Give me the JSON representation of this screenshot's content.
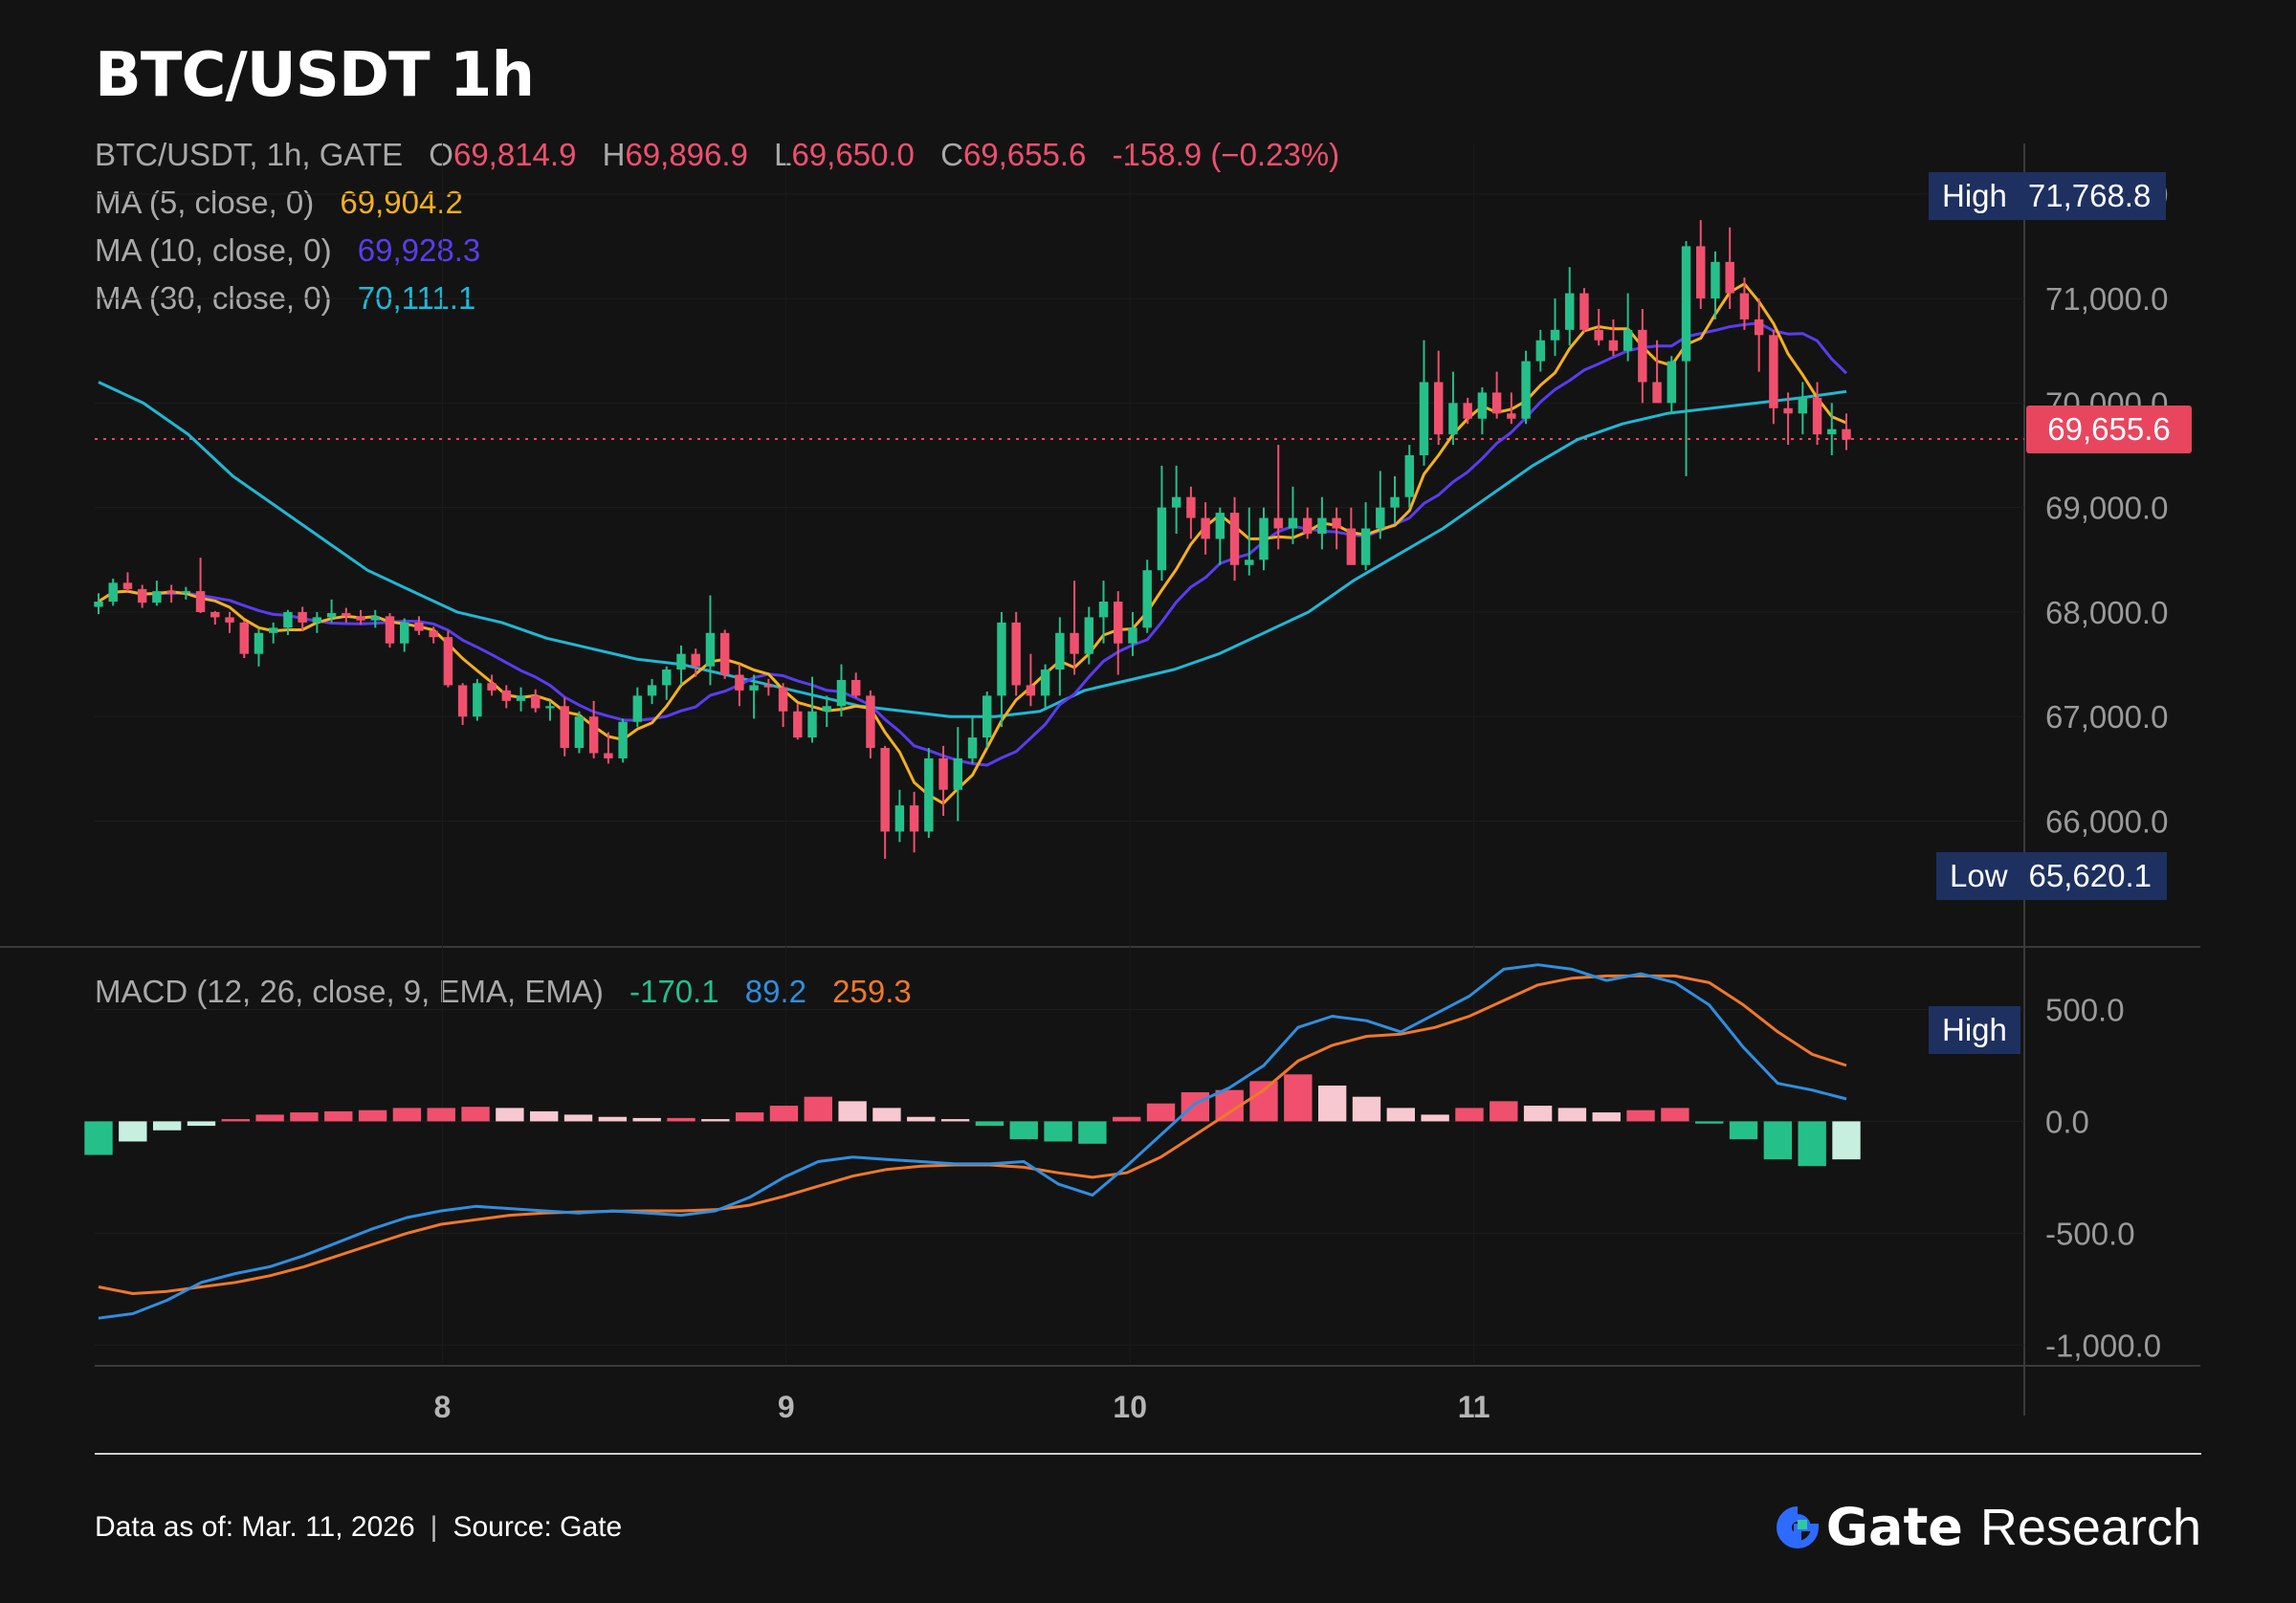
{
  "title": "BTC/USDT 1h",
  "legend": {
    "symbol": "BTC/USDT, 1h, GATE",
    "o_label": "O",
    "o_value": "69,814.9",
    "h_label": "H",
    "h_value": "69,896.9",
    "l_label": "L",
    "l_value": "69,650.0",
    "c_label": "C",
    "c_value": "69,655.6",
    "change": "-158.9 (−0.23%)",
    "ma5_label": "MA (5, close, 0)",
    "ma5_value": "69,904.2",
    "ma10_label": "MA (10, close, 0)",
    "ma10_value": "69,928.3",
    "ma30_label": "MA (30, close, 0)",
    "ma30_value": "70,111.1",
    "macd_label": "MACD (12, 26, close, 9, EMA, EMA)",
    "macd_hist": "-170.1",
    "macd_line": "89.2",
    "macd_signal": "259.3"
  },
  "tags": {
    "high_label": "High",
    "high_value": "71,768.8",
    "low_label": "Low",
    "low_value": "65,620.1",
    "last_price": "69,655.6",
    "macd_high_label": "High"
  },
  "footer": {
    "data_as_of": "Data as of: Mar. 11, 2026",
    "source": "Source:  Gate",
    "brand_name": "Gate",
    "brand_suffix": "Research"
  },
  "colors": {
    "up": "#25c08a",
    "down": "#f0506e",
    "ma5": "#f5b01b",
    "ma10": "#5a3cf0",
    "ma30": "#1fb8d6",
    "macd": "#2f8fe0",
    "signal": "#f0782a",
    "tag_bg": "#1d3060",
    "price_tag": "#e8465e"
  },
  "chart_data": [
    {
      "type": "candlestick",
      "title": "BTC/USDT 1h",
      "price_axis": {
        "ticks": [
          "72,000.0",
          "71,000.0",
          "70,000.0",
          "69,000.0",
          "68,000.0",
          "67,000.0",
          "66,000.0"
        ],
        "tick_values": [
          72000,
          71000,
          70000,
          69000,
          68000,
          67000,
          66000
        ],
        "ylim": [
          65300,
          72300
        ]
      },
      "x_ticks": [
        "8",
        "9",
        "10",
        "11"
      ],
      "x_tick_bars": [
        24,
        48,
        72,
        96
      ],
      "last_price": 69655.6,
      "high": 71768.8,
      "low": 65620.1,
      "candles": [
        [
          68050,
          68180,
          67980,
          68100
        ],
        [
          68100,
          68320,
          68060,
          68280
        ],
        [
          68280,
          68380,
          68200,
          68220
        ],
        [
          68220,
          68260,
          68040,
          68090
        ],
        [
          68090,
          68300,
          68060,
          68200
        ],
        [
          68200,
          68260,
          68090,
          68180
        ],
        [
          68180,
          68240,
          68120,
          68200
        ],
        [
          68200,
          68520,
          67990,
          68000
        ],
        [
          68000,
          68010,
          67880,
          67950
        ],
        [
          67950,
          68000,
          67800,
          67900
        ],
        [
          67900,
          67920,
          67560,
          67600
        ],
        [
          67600,
          67840,
          67480,
          67800
        ],
        [
          67800,
          67900,
          67700,
          67850
        ],
        [
          67850,
          68020,
          67780,
          68000
        ],
        [
          68000,
          68050,
          67820,
          67900
        ],
        [
          67900,
          68000,
          67800,
          67950
        ],
        [
          67950,
          68120,
          67900,
          67990
        ],
        [
          67990,
          68040,
          67900,
          67960
        ],
        [
          67960,
          68020,
          67880,
          67920
        ],
        [
          67920,
          68020,
          67850,
          67960
        ],
        [
          67960,
          67990,
          67660,
          67700
        ],
        [
          67700,
          67940,
          67620,
          67900
        ],
        [
          67900,
          67960,
          67780,
          67820
        ],
        [
          67820,
          67860,
          67700,
          67760
        ],
        [
          67760,
          67820,
          67280,
          67300
        ],
        [
          67300,
          67320,
          66920,
          67000
        ],
        [
          67000,
          67360,
          66960,
          67320
        ],
        [
          67320,
          67400,
          67200,
          67250
        ],
        [
          67250,
          67300,
          67080,
          67150
        ],
        [
          67150,
          67280,
          67050,
          67200
        ],
        [
          67200,
          67260,
          67040,
          67080
        ],
        [
          67080,
          67150,
          66960,
          67100
        ],
        [
          67100,
          67180,
          66620,
          66700
        ],
        [
          66700,
          67050,
          66650,
          67000
        ],
        [
          67000,
          67150,
          66600,
          66650
        ],
        [
          66650,
          66850,
          66550,
          66600
        ],
        [
          66600,
          66980,
          66560,
          66950
        ],
        [
          66950,
          67280,
          66900,
          67200
        ],
        [
          67200,
          67360,
          67120,
          67300
        ],
        [
          67300,
          67480,
          67160,
          67450
        ],
        [
          67450,
          67680,
          67300,
          67600
        ],
        [
          67600,
          67650,
          67380,
          67480
        ],
        [
          67480,
          68160,
          67300,
          67800
        ],
        [
          67800,
          67830,
          67360,
          67400
        ],
        [
          67400,
          67500,
          67100,
          67250
        ],
        [
          67250,
          67400,
          66980,
          67300
        ],
        [
          67300,
          67360,
          67200,
          67280
        ],
        [
          67280,
          67320,
          66900,
          67050
        ],
        [
          67050,
          67120,
          66780,
          66800
        ],
        [
          66800,
          67380,
          66750,
          67050
        ],
        [
          67050,
          67200,
          66900,
          67100
        ],
        [
          67100,
          67500,
          67000,
          67350
        ],
        [
          67350,
          67420,
          67180,
          67200
        ],
        [
          67200,
          67250,
          66600,
          66700
        ],
        [
          66700,
          66720,
          65640,
          65900
        ],
        [
          65900,
          66300,
          65800,
          66150
        ],
        [
          66150,
          66280,
          65700,
          65900
        ],
        [
          65900,
          66700,
          65840,
          66600
        ],
        [
          66600,
          66720,
          66050,
          66300
        ],
        [
          66300,
          66900,
          66000,
          66600
        ],
        [
          66600,
          67000,
          66550,
          66800
        ],
        [
          66800,
          67240,
          66700,
          67200
        ],
        [
          67200,
          68000,
          66900,
          67900
        ],
        [
          67900,
          68000,
          67200,
          67300
        ],
        [
          67300,
          67600,
          67100,
          67200
        ],
        [
          67200,
          67500,
          67080,
          67450
        ],
        [
          67450,
          67950,
          67200,
          67800
        ],
        [
          67800,
          68300,
          67400,
          67600
        ],
        [
          67600,
          68050,
          67500,
          67950
        ],
        [
          67950,
          68300,
          67700,
          68100
        ],
        [
          68100,
          68200,
          67400,
          67700
        ],
        [
          67700,
          68000,
          67580,
          67850
        ],
        [
          67850,
          68500,
          67800,
          68400
        ],
        [
          68400,
          69400,
          68300,
          69000
        ],
        [
          69000,
          69400,
          68750,
          69100
        ],
        [
          69100,
          69200,
          68700,
          68900
        ],
        [
          68900,
          69050,
          68550,
          68700
        ],
        [
          68700,
          69000,
          68450,
          68950
        ],
        [
          68950,
          69100,
          68300,
          68450
        ],
        [
          68450,
          69000,
          68350,
          68500
        ],
        [
          68500,
          69000,
          68400,
          68900
        ],
        [
          68900,
          69600,
          68600,
          68800
        ],
        [
          68800,
          69200,
          68650,
          68900
        ],
        [
          68900,
          69000,
          68700,
          68750
        ],
        [
          68750,
          69100,
          68600,
          68900
        ],
        [
          68900,
          69000,
          68600,
          68800
        ],
        [
          68800,
          69000,
          68500,
          68450
        ],
        [
          68450,
          69050,
          68400,
          68800
        ],
        [
          68800,
          69350,
          68700,
          69000
        ],
        [
          69000,
          69300,
          68850,
          69100
        ],
        [
          69100,
          69600,
          69000,
          69500
        ],
        [
          69500,
          70600,
          69400,
          70200
        ],
        [
          70200,
          70500,
          69600,
          69700
        ],
        [
          69700,
          70300,
          69600,
          70000
        ],
        [
          70000,
          70050,
          69800,
          69850
        ],
        [
          69850,
          70150,
          69700,
          70100
        ],
        [
          70100,
          70300,
          69850,
          69900
        ],
        [
          69900,
          70100,
          69800,
          69850
        ],
        [
          69850,
          70500,
          69800,
          70400
        ],
        [
          70400,
          70700,
          70300,
          70600
        ],
        [
          70600,
          71000,
          70450,
          70700
        ],
        [
          70700,
          71300,
          70550,
          71050
        ],
        [
          71050,
          71100,
          70680,
          70700
        ],
        [
          70700,
          70900,
          70550,
          70600
        ],
        [
          70600,
          70800,
          70450,
          70500
        ],
        [
          70500,
          71050,
          70400,
          70700
        ],
        [
          70700,
          70900,
          70000,
          70200
        ],
        [
          70200,
          70600,
          70050,
          70000
        ],
        [
          70000,
          70450,
          69900,
          70400
        ],
        [
          70400,
          71550,
          69300,
          71500
        ],
        [
          71500,
          71750,
          70900,
          71000
        ],
        [
          71000,
          71450,
          70800,
          71350
        ],
        [
          71350,
          71680,
          70900,
          71050
        ],
        [
          71050,
          71200,
          70700,
          70800
        ],
        [
          70800,
          71000,
          70300,
          70650
        ],
        [
          70650,
          70700,
          69800,
          69950
        ],
        [
          69950,
          70100,
          69600,
          69900
        ],
        [
          69900,
          70200,
          69700,
          70050
        ],
        [
          70050,
          70200,
          69600,
          69700
        ],
        [
          69700,
          70000,
          69500,
          69750
        ],
        [
          69750,
          69900,
          69550,
          69650
        ]
      ]
    },
    {
      "type": "line",
      "title": "MA",
      "series": [
        {
          "name": "MA (5, close, 0)",
          "color": "#f5b01b"
        },
        {
          "name": "MA (10, close, 0)",
          "color": "#5a3cf0"
        },
        {
          "name": "MA (30, close, 0)",
          "color": "#1fb8d6",
          "values": [
            70200,
            70000,
            69700,
            69300,
            69000,
            68700,
            68400,
            68200,
            68000,
            67900,
            67750,
            67650,
            67550,
            67500,
            67400,
            67300,
            67200,
            67100,
            67050,
            67000,
            67000,
            67050,
            67250,
            67350,
            67450,
            67600,
            67800,
            68000,
            68300,
            68550,
            68800,
            69100,
            69400,
            69650,
            69800,
            69900,
            69950,
            70000,
            70050,
            70110
          ]
        }
      ]
    },
    {
      "type": "macd",
      "title": "MACD (12, 26, close, 9, EMA, EMA)",
      "axis": {
        "ticks": [
          "500.0",
          "0.0",
          "-500.0",
          "-1,000.0"
        ],
        "tick_values": [
          500,
          0,
          -500,
          -1000
        ],
        "ylim": [
          -1080,
          780
        ]
      },
      "macd_line": [
        -880,
        -860,
        -800,
        -720,
        -680,
        -650,
        -600,
        -540,
        -480,
        -430,
        -400,
        -380,
        -390,
        -400,
        -410,
        -400,
        -410,
        -420,
        -400,
        -340,
        -250,
        -180,
        -160,
        -170,
        -180,
        -190,
        -190,
        -180,
        -280,
        -330,
        -200,
        -60,
        80,
        150,
        250,
        420,
        470,
        450,
        400,
        480,
        560,
        680,
        700,
        680,
        630,
        660,
        620,
        520,
        330,
        170,
        140,
        100
      ],
      "signal_line": [
        -740,
        -770,
        -760,
        -740,
        -720,
        -690,
        -650,
        -600,
        -550,
        -500,
        -460,
        -440,
        -420,
        -410,
        -405,
        -402,
        -400,
        -400,
        -395,
        -375,
        -335,
        -290,
        -245,
        -215,
        -200,
        -195,
        -195,
        -205,
        -230,
        -250,
        -230,
        -160,
        -60,
        40,
        140,
        270,
        340,
        380,
        390,
        420,
        470,
        540,
        610,
        640,
        650,
        650,
        650,
        620,
        520,
        400,
        300,
        250
      ],
      "histogram": [
        -150,
        -90,
        -40,
        -20,
        10,
        30,
        40,
        45,
        50,
        60,
        60,
        65,
        60,
        45,
        30,
        20,
        15,
        15,
        10,
        40,
        70,
        110,
        90,
        60,
        20,
        10,
        -20,
        -80,
        -90,
        -100,
        20,
        80,
        130,
        140,
        180,
        210,
        160,
        110,
        60,
        30,
        60,
        90,
        70,
        60,
        40,
        50,
        60,
        -10,
        -80,
        -170,
        -200,
        -170
      ]
    }
  ]
}
